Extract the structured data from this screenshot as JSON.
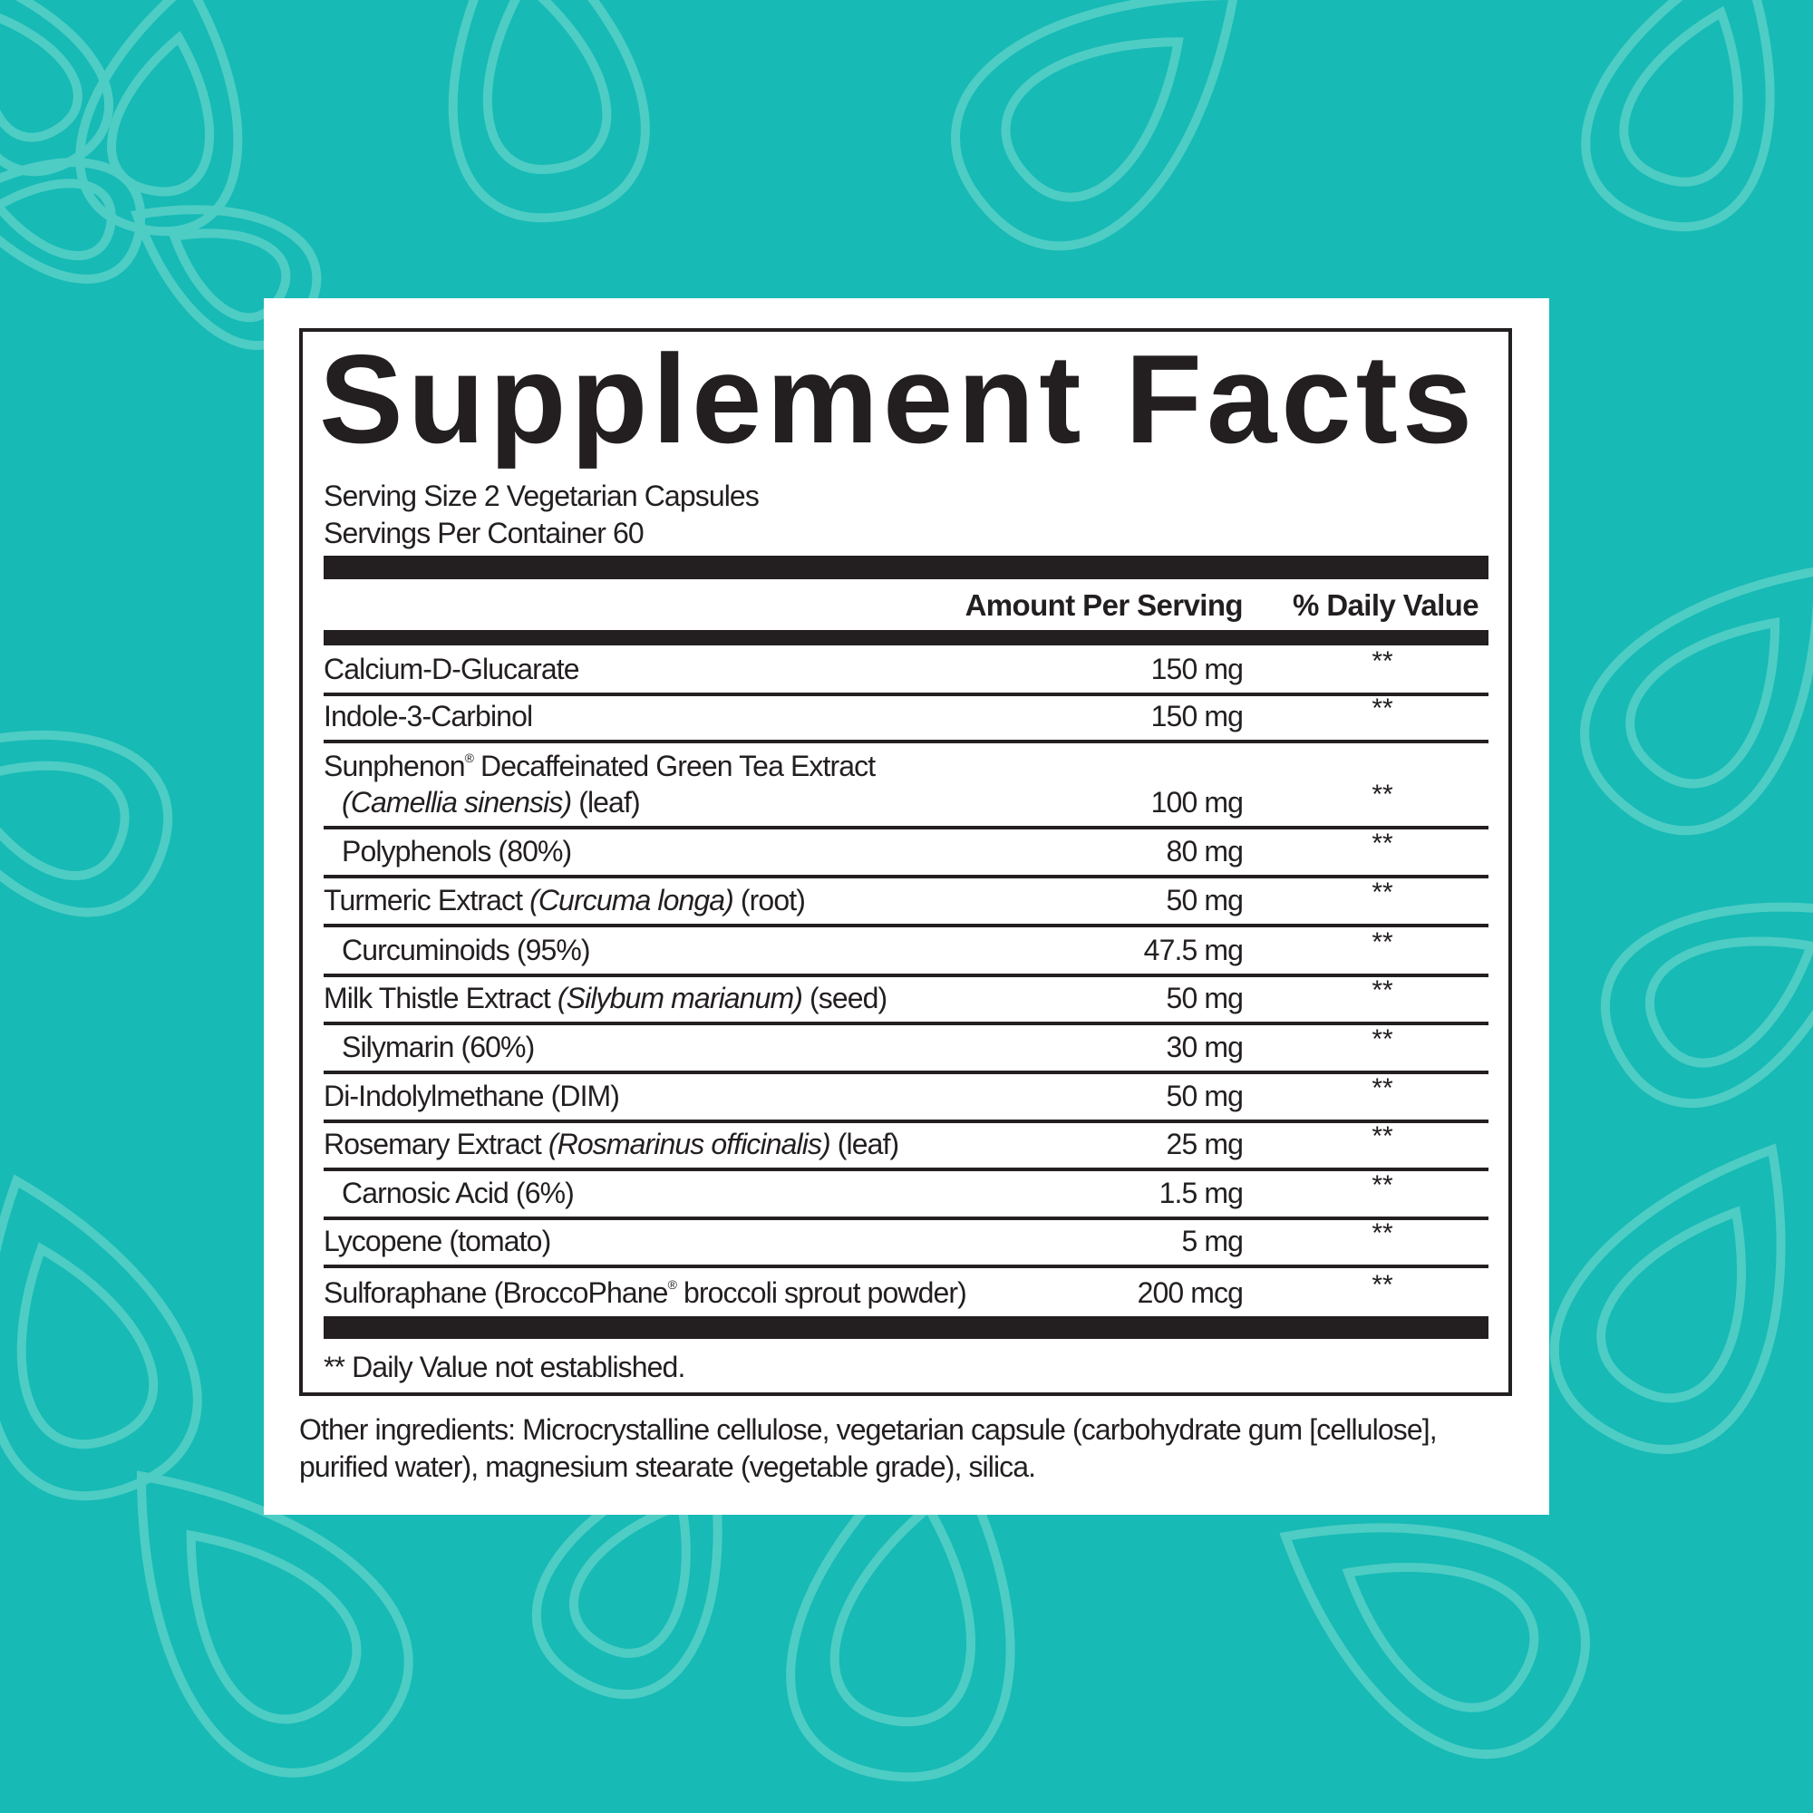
{
  "colors": {
    "background": "#17bab5",
    "pattern": "#4ecdc5",
    "panel": "#ffffff",
    "ink": "#231f20"
  },
  "title": "Supplement Facts",
  "serving_size": "Serving Size 2 Vegetarian Capsules",
  "servings_per_container": "Servings Per Container 60",
  "header": {
    "amount": "Amount Per Serving",
    "dv": "% Daily Value"
  },
  "rows": [
    {
      "segments": [
        {
          "t": "Calcium-D-Glucarate"
        }
      ],
      "amount": "150 mg",
      "dv": "**"
    },
    {
      "segments": [
        {
          "t": "Indole-3-Carbinol"
        }
      ],
      "amount": "150 mg",
      "dv": "**"
    },
    {
      "segments": [
        {
          "t": "Sunphenon"
        },
        {
          "t": "®",
          "sup": true
        },
        {
          "t": " Decaffeinated Green Tea Extract"
        }
      ],
      "line2": [
        {
          "t": "(Camellia sinensis)",
          "i": true
        },
        {
          "t": " (leaf)"
        }
      ],
      "amount": "100 mg",
      "dv": "**"
    },
    {
      "segments": [
        {
          "t": "Polyphenols (80%)"
        }
      ],
      "amount": "80 mg",
      "dv": "**",
      "sub": true
    },
    {
      "segments": [
        {
          "t": "Turmeric Extract "
        },
        {
          "t": "(Curcuma longa)",
          "i": true
        },
        {
          "t": " (root)"
        }
      ],
      "amount": "50 mg",
      "dv": "**"
    },
    {
      "segments": [
        {
          "t": "Curcuminoids (95%)"
        }
      ],
      "amount": "47.5 mg",
      "dv": "**",
      "sub": true
    },
    {
      "segments": [
        {
          "t": "Milk Thistle Extract "
        },
        {
          "t": "(Silybum marianum)",
          "i": true
        },
        {
          "t": " (seed)"
        }
      ],
      "amount": "50 mg",
      "dv": "**"
    },
    {
      "segments": [
        {
          "t": "Silymarin (60%)"
        }
      ],
      "amount": "30 mg",
      "dv": "**",
      "sub": true
    },
    {
      "segments": [
        {
          "t": "Di-Indolylmethane (DIM)"
        }
      ],
      "amount": "50 mg",
      "dv": "**"
    },
    {
      "segments": [
        {
          "t": "Rosemary Extract "
        },
        {
          "t": "(Rosmarinus officinalis)",
          "i": true
        },
        {
          "t": " (leaf)"
        }
      ],
      "amount": "25 mg",
      "dv": "**"
    },
    {
      "segments": [
        {
          "t": "Carnosic Acid (6%)"
        }
      ],
      "amount": "1.5 mg",
      "dv": "**",
      "sub": true
    },
    {
      "segments": [
        {
          "t": "Lycopene (tomato)"
        }
      ],
      "amount": "5 mg",
      "dv": "**"
    },
    {
      "segments": [
        {
          "t": "Sulforaphane (BroccoPhane"
        },
        {
          "t": "®",
          "sup": true
        },
        {
          "t": " broccoli sprout powder)"
        }
      ],
      "amount": "200 mcg",
      "dv": "**"
    }
  ],
  "footnote": "** Daily Value not established.",
  "other_ingredients": {
    "line1": "Other ingredients: Microcrystalline cellulose, vegetarian capsule (carbohydrate gum [cellulose],",
    "line2": "purified water), magnesium stearate (vegetable grade), silica."
  }
}
